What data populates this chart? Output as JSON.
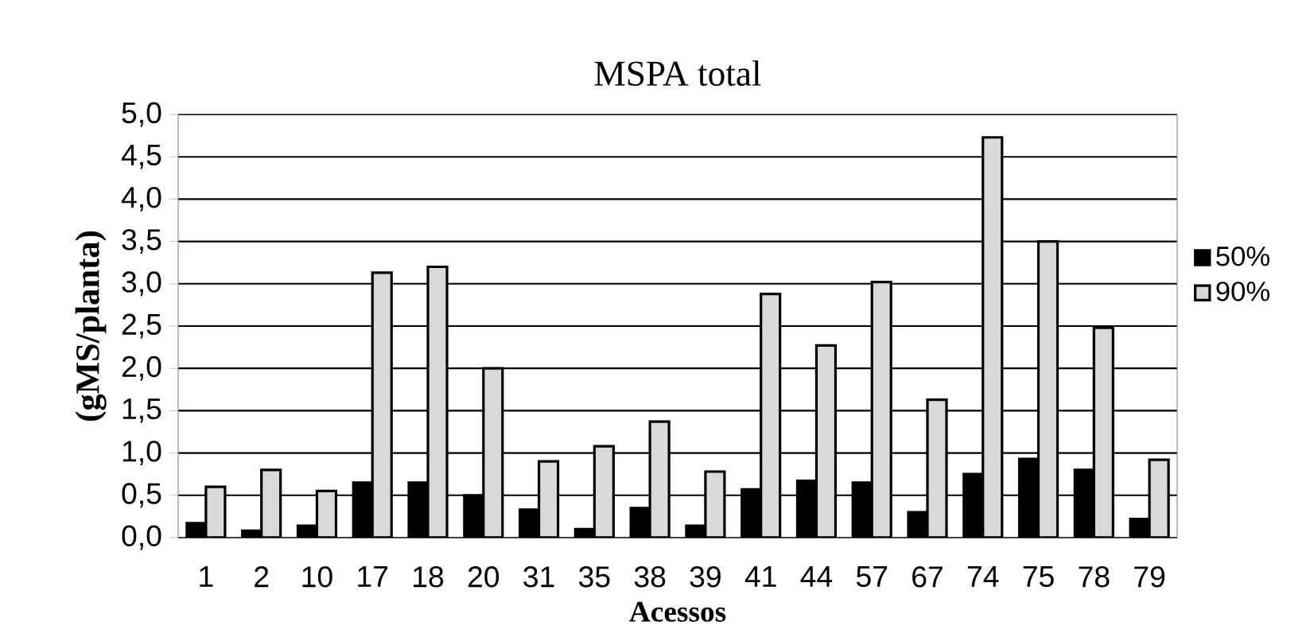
{
  "chart_data": {
    "type": "bar",
    "title": "MSPA total",
    "xlabel": "Acessos",
    "ylabel": "(gMS/planta)",
    "categories": [
      "1",
      "2",
      "10",
      "17",
      "18",
      "20",
      "31",
      "35",
      "38",
      "39",
      "41",
      "44",
      "57",
      "67",
      "74",
      "75",
      "78",
      "79"
    ],
    "series": [
      {
        "name": "50%",
        "color": "#000000",
        "values": [
          0.17,
          0.08,
          0.14,
          0.65,
          0.65,
          0.5,
          0.33,
          0.1,
          0.35,
          0.14,
          0.57,
          0.67,
          0.65,
          0.3,
          0.75,
          0.93,
          0.8,
          0.22
        ]
      },
      {
        "name": "90%",
        "color": "#d9d9d9",
        "values": [
          0.6,
          0.8,
          0.55,
          3.13,
          3.2,
          2.0,
          0.9,
          1.08,
          1.37,
          0.78,
          2.88,
          2.27,
          3.02,
          1.63,
          4.73,
          3.5,
          2.48,
          0.92
        ]
      }
    ],
    "ylim": [
      0,
      5
    ],
    "yticks": [
      {
        "value": 0,
        "label": "0,0"
      },
      {
        "value": 0.5,
        "label": "0,5"
      },
      {
        "value": 1,
        "label": "1,0"
      },
      {
        "value": 1.5,
        "label": "1,5"
      },
      {
        "value": 2,
        "label": "2,0"
      },
      {
        "value": 2.5,
        "label": "2,5"
      },
      {
        "value": 3,
        "label": "3,0"
      },
      {
        "value": 3.5,
        "label": "3,5"
      },
      {
        "value": 4,
        "label": "4,0"
      },
      {
        "value": 4.5,
        "label": "4,5"
      },
      {
        "value": 5,
        "label": "5,0"
      }
    ],
    "grid": "y",
    "legend": "right"
  }
}
